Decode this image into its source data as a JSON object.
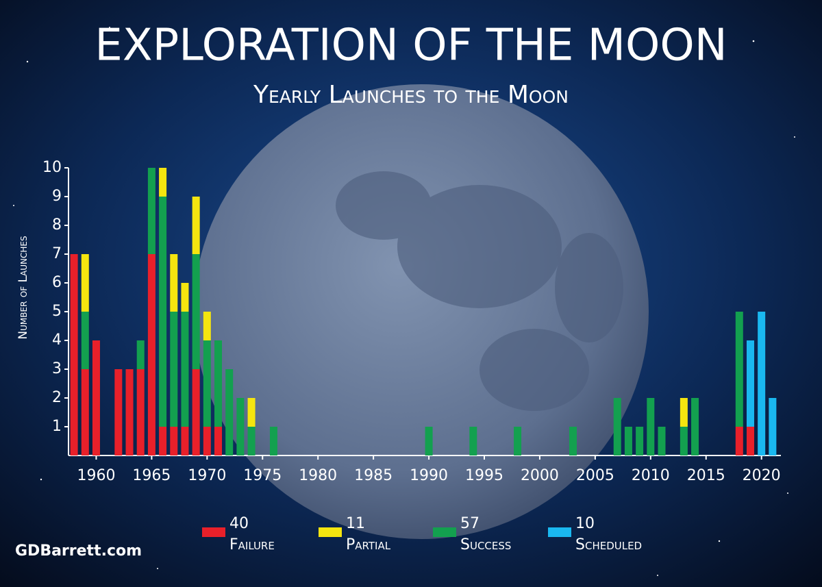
{
  "chart_data": {
    "type": "bar",
    "stacked": true,
    "title": "EXPLORATION OF THE MOON",
    "subtitle": "Yearly Launches to the Moon",
    "y_label": "Number of Launches",
    "credit": "GDBarrett.com",
    "x": [
      1958,
      1959,
      1960,
      1961,
      1962,
      1963,
      1964,
      1965,
      1966,
      1967,
      1968,
      1969,
      1970,
      1971,
      1972,
      1973,
      1974,
      1975,
      1976,
      1977,
      1978,
      1979,
      1980,
      1981,
      1982,
      1983,
      1984,
      1985,
      1986,
      1987,
      1988,
      1989,
      1990,
      1991,
      1992,
      1993,
      1994,
      1995,
      1996,
      1997,
      1998,
      1999,
      2000,
      2001,
      2002,
      2003,
      2004,
      2005,
      2006,
      2007,
      2008,
      2009,
      2010,
      2011,
      2012,
      2013,
      2014,
      2015,
      2016,
      2017,
      2018,
      2019,
      2020,
      2021
    ],
    "series": [
      {
        "name": "Failure",
        "total": 40,
        "color": "#e8202a",
        "values": [
          7,
          3,
          4,
          0,
          3,
          3,
          3,
          7,
          1,
          1,
          1,
          3,
          1,
          1,
          0,
          0,
          0,
          0,
          0,
          0,
          0,
          0,
          0,
          0,
          0,
          0,
          0,
          0,
          0,
          0,
          0,
          0,
          0,
          0,
          0,
          0,
          0,
          0,
          0,
          0,
          0,
          0,
          0,
          0,
          0,
          0,
          0,
          0,
          0,
          0,
          0,
          0,
          0,
          0,
          0,
          0,
          0,
          0,
          0,
          0,
          1,
          1,
          0,
          0
        ]
      },
      {
        "name": "Success",
        "total": 57,
        "color": "#13a04f",
        "values": [
          0,
          2,
          0,
          0,
          0,
          0,
          1,
          3,
          8,
          4,
          4,
          4,
          3,
          3,
          3,
          2,
          1,
          0,
          1,
          0,
          0,
          0,
          0,
          0,
          0,
          0,
          0,
          0,
          0,
          0,
          0,
          0,
          1,
          0,
          0,
          0,
          1,
          0,
          0,
          0,
          1,
          0,
          0,
          0,
          0,
          1,
          0,
          0,
          0,
          2,
          1,
          1,
          2,
          1,
          0,
          1,
          2,
          0,
          0,
          0,
          4,
          0,
          0,
          0
        ]
      },
      {
        "name": "Partial",
        "total": 11,
        "color": "#f5e50f",
        "values": [
          0,
          2,
          0,
          0,
          0,
          0,
          0,
          0,
          1,
          2,
          1,
          2,
          1,
          0,
          0,
          0,
          1,
          0,
          0,
          0,
          0,
          0,
          0,
          0,
          0,
          0,
          0,
          0,
          0,
          0,
          0,
          0,
          0,
          0,
          0,
          0,
          0,
          0,
          0,
          0,
          0,
          0,
          0,
          0,
          0,
          0,
          0,
          0,
          0,
          0,
          0,
          0,
          0,
          0,
          0,
          1,
          0,
          0,
          0,
          0,
          0,
          0,
          0,
          0
        ]
      },
      {
        "name": "Scheduled",
        "total": 10,
        "color": "#1ab8f0",
        "values": [
          0,
          0,
          0,
          0,
          0,
          0,
          0,
          0,
          0,
          0,
          0,
          0,
          0,
          0,
          0,
          0,
          0,
          0,
          0,
          0,
          0,
          0,
          0,
          0,
          0,
          0,
          0,
          0,
          0,
          0,
          0,
          0,
          0,
          0,
          0,
          0,
          0,
          0,
          0,
          0,
          0,
          0,
          0,
          0,
          0,
          0,
          0,
          0,
          0,
          0,
          0,
          0,
          0,
          0,
          0,
          0,
          0,
          0,
          0,
          0,
          0,
          3,
          5,
          2
        ]
      }
    ],
    "xlim": [
      1957.5,
      2021.75
    ],
    "xticks": [
      1960,
      1965,
      1970,
      1975,
      1980,
      1985,
      1990,
      1995,
      2000,
      2005,
      2010,
      2015,
      2020
    ],
    "ylim": [
      0,
      10
    ],
    "yticks": [
      1,
      2,
      3,
      4,
      5,
      6,
      7,
      8,
      9,
      10
    ],
    "legend_order": [
      0,
      2,
      1,
      3
    ]
  }
}
